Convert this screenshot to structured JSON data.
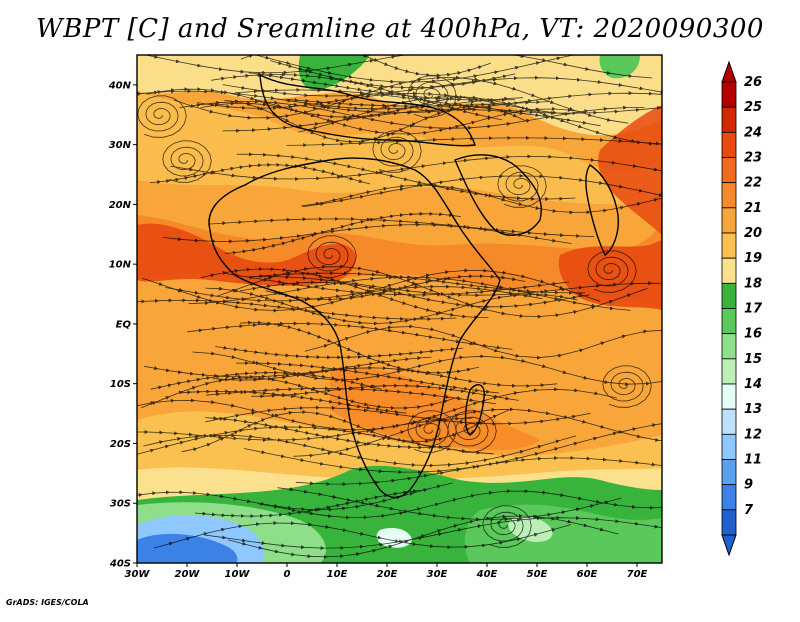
{
  "title": "WBPT [C] and Sreamline at 400hPa, VT: 2020090300",
  "credit": "GrADS: IGES/COLA",
  "lat_ticks": [
    "40N",
    "30N",
    "20N",
    "10N",
    "EQ",
    "10S",
    "20S",
    "30S",
    "40S"
  ],
  "lon_ticks": [
    "30W",
    "20W",
    "10W",
    "0",
    "10E",
    "20E",
    "30E",
    "40E",
    "50E",
    "60E",
    "70E"
  ],
  "colorbar": {
    "labels": [
      "26",
      "25",
      "24",
      "23",
      "22",
      "21",
      "20",
      "19",
      "18",
      "17",
      "16",
      "15",
      "14",
      "13",
      "12",
      "11",
      "9",
      "7"
    ],
    "colors": [
      "#b40000",
      "#d22800",
      "#e84a10",
      "#f26a1c",
      "#f68a28",
      "#f8a63a",
      "#fac050",
      "#fbe08e",
      "#38b43c",
      "#5ac85a",
      "#8ede8a",
      "#bdf0b8",
      "#e6fff4",
      "#bde0ff",
      "#8ec8ff",
      "#5aa0f0",
      "#3c82e6",
      "#2060d0"
    ]
  },
  "colors": {
    "warm_dark": "#e84a10",
    "warm": "#f68a28",
    "warm_light": "#fac050",
    "yellow": "#fbe08e",
    "green": "#38b43c",
    "green_light": "#8ede8a",
    "blue": "#5aa0f0",
    "blue_dark": "#2060d0"
  }
}
